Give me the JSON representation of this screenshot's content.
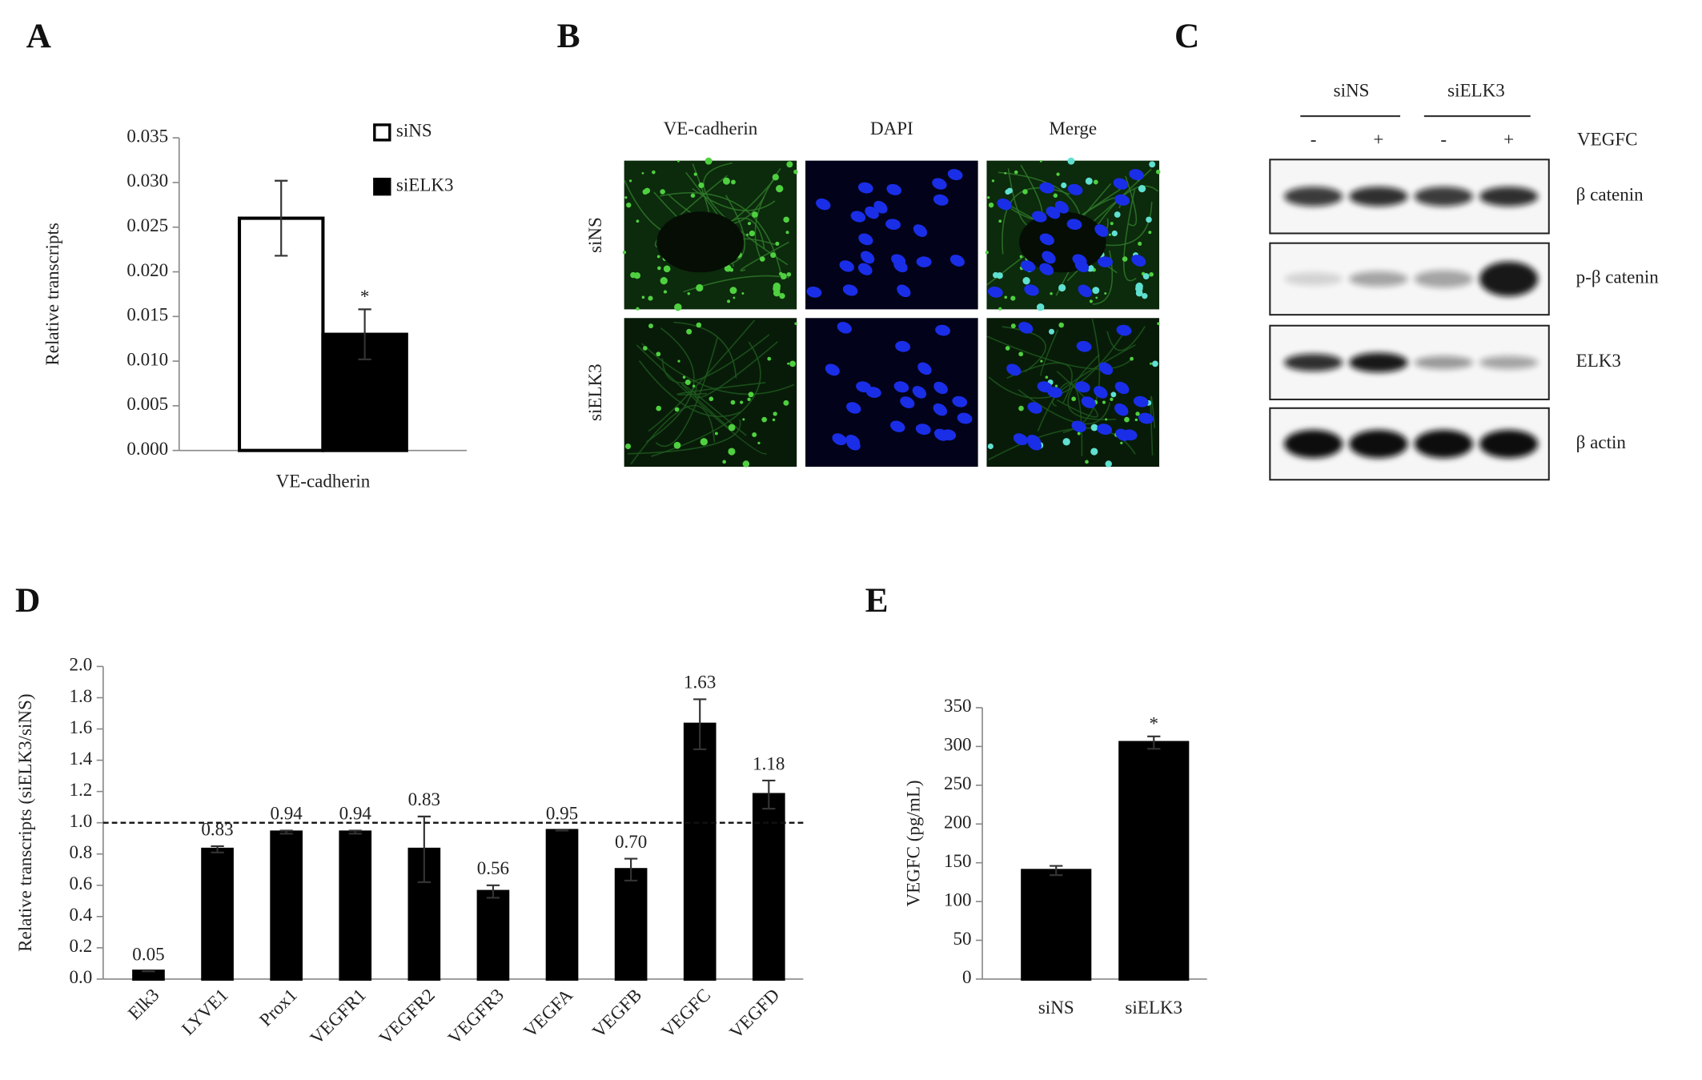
{
  "chart_data": [
    {
      "panel": "A",
      "type": "bar",
      "y_label": "Relative transcripts",
      "categories": [
        "VE-cadherin"
      ],
      "series": [
        {
          "name": "siNS",
          "color": "#ffffff",
          "values": [
            0.026
          ],
          "errors": [
            0.0042
          ],
          "significance": [
            null
          ]
        },
        {
          "name": "siELK3",
          "color": "#000000",
          "values": [
            0.013
          ],
          "errors": [
            0.0028
          ],
          "significance": [
            "*"
          ]
        }
      ],
      "ylim": [
        0,
        0.035
      ],
      "yticks": [
        {
          "value": 0,
          "label": "0.000"
        },
        0.005,
        {
          "value": 0.01,
          "label": "0.010"
        },
        0.015,
        {
          "value": 0.02,
          "label": "0.020"
        },
        0.025,
        {
          "value": 0.03,
          "label": "0.030"
        },
        0.035
      ],
      "legend": "upper right"
    },
    {
      "panel": "D",
      "type": "bar",
      "y_label": "Relative transcripts (siELK3/siNS)",
      "categories": [
        "Elk3",
        "LYVE1",
        "Prox1",
        "VEGFR1",
        "VEGFR2",
        "VEGFR3",
        "VEGFA",
        "VEGFB",
        "VEGFC",
        "VEGFD"
      ],
      "values": [
        0.05,
        0.83,
        0.94,
        0.94,
        0.83,
        0.56,
        0.95,
        0.7,
        1.63,
        1.18
      ],
      "value_labels": [
        "0.05",
        "0.83",
        "0.94",
        "0.94",
        "0.83",
        "0.56",
        "0.95",
        "0.70",
        "1.63",
        "1.18"
      ],
      "errors": [
        0.0,
        0.02,
        0.01,
        0.01,
        0.21,
        0.04,
        0.0,
        0.07,
        0.16,
        0.09
      ],
      "color": "#000000",
      "ylim": [
        0,
        2
      ],
      "yticks": [
        {
          "value": 0,
          "label": "0.0"
        },
        0.2,
        0.4,
        0.6,
        0.8,
        {
          "value": 1,
          "label": "1.0"
        },
        1.2,
        1.4,
        1.6,
        1.8,
        {
          "value": 2,
          "label": "2.0"
        }
      ],
      "reference_line": 1
    },
    {
      "panel": "E",
      "type": "bar",
      "y_label": "VEGFC  (pg/mL)",
      "categories": [
        "siNS",
        "siELK3"
      ],
      "values": [
        140,
        305
      ],
      "errors": [
        6,
        8
      ],
      "significance": [
        null,
        "*"
      ],
      "color": "#000000",
      "ylim": [
        0,
        350
      ],
      "yticks": [
        0,
        50,
        100,
        150,
        200,
        250,
        300,
        350
      ]
    }
  ],
  "panel_b": {
    "panel": "B",
    "columns": [
      "VE-cadherin",
      "DAPI",
      "Merge"
    ],
    "rows": [
      "siNS",
      "siELK3"
    ]
  },
  "panel_c": {
    "panel": "C",
    "groups": [
      "siNS",
      "siELK3"
    ],
    "treatment": [
      "-",
      "+",
      "-",
      "+"
    ],
    "treatment_label": "VEGFC",
    "blots": [
      "β catenin",
      "p-β catenin",
      "ELK3",
      "β actin"
    ]
  }
}
